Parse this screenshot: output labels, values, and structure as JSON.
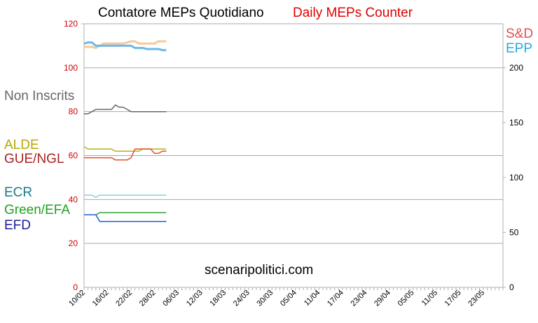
{
  "chart_data": {
    "type": "line",
    "title": "Contatore MEPs Quotidiano",
    "subtitle": "Daily MEPs Counter",
    "watermark": "scenaripolitici.com",
    "ylim": [
      0,
      120
    ],
    "yticks": [
      "0",
      "20",
      "40",
      "60",
      "80",
      "100",
      "120"
    ],
    "y2lim": [
      0,
      240
    ],
    "y2ticks": [
      "0",
      "50",
      "100",
      "150",
      "200"
    ],
    "y2tick_values": [
      0,
      50,
      100,
      150,
      200
    ],
    "grid": true,
    "legend": "left",
    "x": [
      "10/02",
      "11/02",
      "12/02",
      "13/02",
      "14/02",
      "15/02",
      "16/02",
      "17/02",
      "18/02",
      "19/02",
      "20/02",
      "21/02",
      "22/02",
      "23/02",
      "24/02",
      "25/02",
      "26/02",
      "27/02",
      "28/02",
      "01/03",
      "02/03",
      "03/03"
    ],
    "x_ticks": [
      "10/02",
      "16/02",
      "22/02",
      "28/02",
      "06/03",
      "12/03",
      "18/03",
      "24/03",
      "30/03",
      "05/04",
      "11/04",
      "17/04",
      "23/04",
      "29/04",
      "05/05",
      "11/05",
      "17/05",
      "23/05"
    ],
    "series": [
      {
        "name": "S&D",
        "axis": "right",
        "color": "#f7c89b",
        "label_color": "#e05050",
        "values": [
          219,
          219,
          219,
          218,
          220,
          222,
          222,
          222,
          222,
          222,
          222,
          223,
          224,
          224,
          222,
          222,
          222,
          222,
          222,
          224,
          224,
          224
        ]
      },
      {
        "name": "EPP",
        "axis": "right",
        "color": "#6cb8ea",
        "label_color": "#27a9e1",
        "values": [
          222,
          223,
          223,
          220,
          220,
          220,
          220,
          220,
          220,
          220,
          220,
          220,
          220,
          218,
          218,
          218,
          217,
          217,
          217,
          217,
          216,
          216
        ]
      },
      {
        "name": "Non Inscrits",
        "axis": "left",
        "color": "#666666",
        "label_color": "#666666",
        "values": [
          79,
          79,
          80,
          81,
          81,
          81,
          81,
          81,
          83,
          82,
          82,
          81,
          80,
          80,
          80,
          80,
          80,
          80,
          80,
          80,
          80,
          80
        ]
      },
      {
        "name": "ALDE",
        "axis": "left",
        "color": "#b5b31c",
        "label_color": "#b5a800",
        "values": [
          64,
          63,
          63,
          63,
          63,
          63,
          63,
          63,
          62,
          62,
          62,
          62,
          62,
          62,
          62,
          63,
          63,
          63,
          63,
          63,
          63,
          63
        ]
      },
      {
        "name": "GUE/NGL",
        "axis": "left",
        "color": "#e0502a",
        "label_color": "#aa2222",
        "values": [
          59,
          59,
          59,
          59,
          59,
          59,
          59,
          59,
          58,
          58,
          58,
          58,
          59,
          63,
          63,
          63,
          63,
          63,
          61,
          61,
          62,
          62
        ]
      },
      {
        "name": "ECR",
        "axis": "left",
        "color": "#4fb8c8",
        "label_color": "#1a7a8a",
        "values": [
          42,
          42,
          42,
          41,
          42,
          42,
          42,
          42,
          42,
          42,
          42,
          42,
          42,
          42,
          42,
          42,
          42,
          42,
          42,
          42,
          42,
          42
        ]
      },
      {
        "name": "Green/EFA",
        "axis": "left",
        "color": "#33a333",
        "label_color": "#22a022",
        "values": [
          33,
          33,
          33,
          33,
          34,
          34,
          34,
          34,
          34,
          34,
          34,
          34,
          34,
          34,
          34,
          34,
          34,
          34,
          34,
          34,
          34,
          34
        ]
      },
      {
        "name": "EFD",
        "axis": "left",
        "color": "#1e5fcf",
        "label_color": "#1a1aa0",
        "values": [
          33,
          33,
          33,
          33,
          30,
          30,
          30,
          30,
          30,
          30,
          30,
          30,
          30,
          30,
          30,
          30,
          30,
          30,
          30,
          30,
          30,
          30
        ]
      }
    ]
  }
}
